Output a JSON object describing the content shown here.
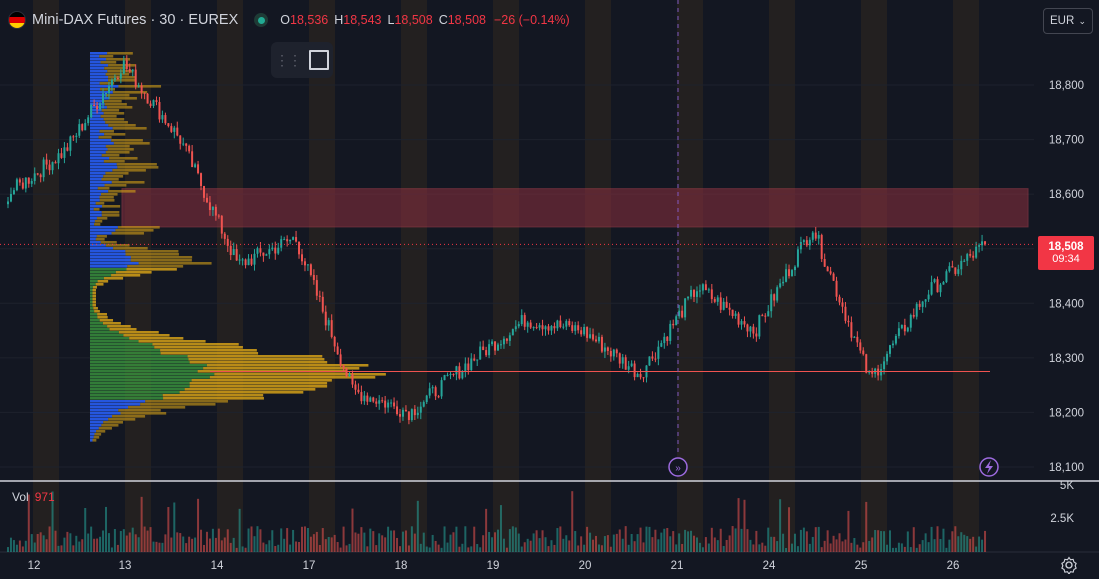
{
  "header": {
    "symbol": "Mini-DAX Futures · 30 · EUREX",
    "ohlc": [
      {
        "k": "O",
        "v": "18,536"
      },
      {
        "k": "H",
        "v": "18,543"
      },
      {
        "k": "L",
        "v": "18,508"
      },
      {
        "k": "C",
        "v": "18,508"
      }
    ],
    "change": "−26 (−0.14%)",
    "market_status": "open"
  },
  "currency": {
    "label": "EUR",
    "icon": "chevron-down-icon"
  },
  "toolbar": {
    "icons": [
      "drag-handle-icon",
      "rectangle-tool-icon"
    ]
  },
  "price_axis": {
    "ticks": [
      "18,800",
      "18,700",
      "18,600",
      "18,500",
      "18,400",
      "18,300",
      "18,200",
      "18,100"
    ]
  },
  "last_price": {
    "value": "18,508",
    "countdown": "09:34"
  },
  "volume_axis": {
    "ticks": [
      "5K",
      "2.5K"
    ]
  },
  "volume": {
    "label": "Vol",
    "value": "971"
  },
  "time_axis": {
    "ticks": [
      "12",
      "13",
      "14",
      "17",
      "18",
      "19",
      "20",
      "21",
      "24",
      "25",
      "26"
    ]
  },
  "markers": [
    "fast-forward-icon",
    "lightning-icon"
  ],
  "colors": {
    "background": "#131722",
    "up": "#26a69a",
    "down": "#ef5350",
    "zone": "#8b2f3f",
    "vp_green": "#388e3c",
    "vp_blue": "#2962ff",
    "vp_gold": "#d4a017",
    "session_band": "#2a2420"
  },
  "chart_data": {
    "type": "candlestick",
    "symbol": "Mini-DAX Futures",
    "interval": "30",
    "exchange": "EUREX",
    "ylim": [
      18100,
      18850
    ],
    "x": [
      "12",
      "13",
      "14",
      "17",
      "18",
      "19",
      "20",
      "21",
      "24",
      "25",
      "26"
    ],
    "approx_close_path": [
      {
        "x": "12",
        "close": 18600
      },
      {
        "x": "12",
        "close": 18680
      },
      {
        "x": "13",
        "close": 18840
      },
      {
        "x": "13",
        "close": 18700
      },
      {
        "x": "14",
        "close": 18470
      },
      {
        "x": "14",
        "close": 18520
      },
      {
        "x": "14",
        "close": 18240
      },
      {
        "x": "17",
        "close": 18200
      },
      {
        "x": "17",
        "close": 18290
      },
      {
        "x": "18",
        "close": 18370
      },
      {
        "x": "19",
        "close": 18350
      },
      {
        "x": "20",
        "close": 18270
      },
      {
        "x": "21",
        "close": 18430
      },
      {
        "x": "24",
        "close": 18350
      },
      {
        "x": "24",
        "close": 18540
      },
      {
        "x": "25",
        "close": 18260
      },
      {
        "x": "26",
        "close": 18420
      },
      {
        "x": "26",
        "close": 18508
      }
    ],
    "resistance_zone": [
      18540,
      18610
    ],
    "poc_line": 18275,
    "last_price": 18508,
    "volume_ylim": [
      0,
      5000
    ]
  }
}
